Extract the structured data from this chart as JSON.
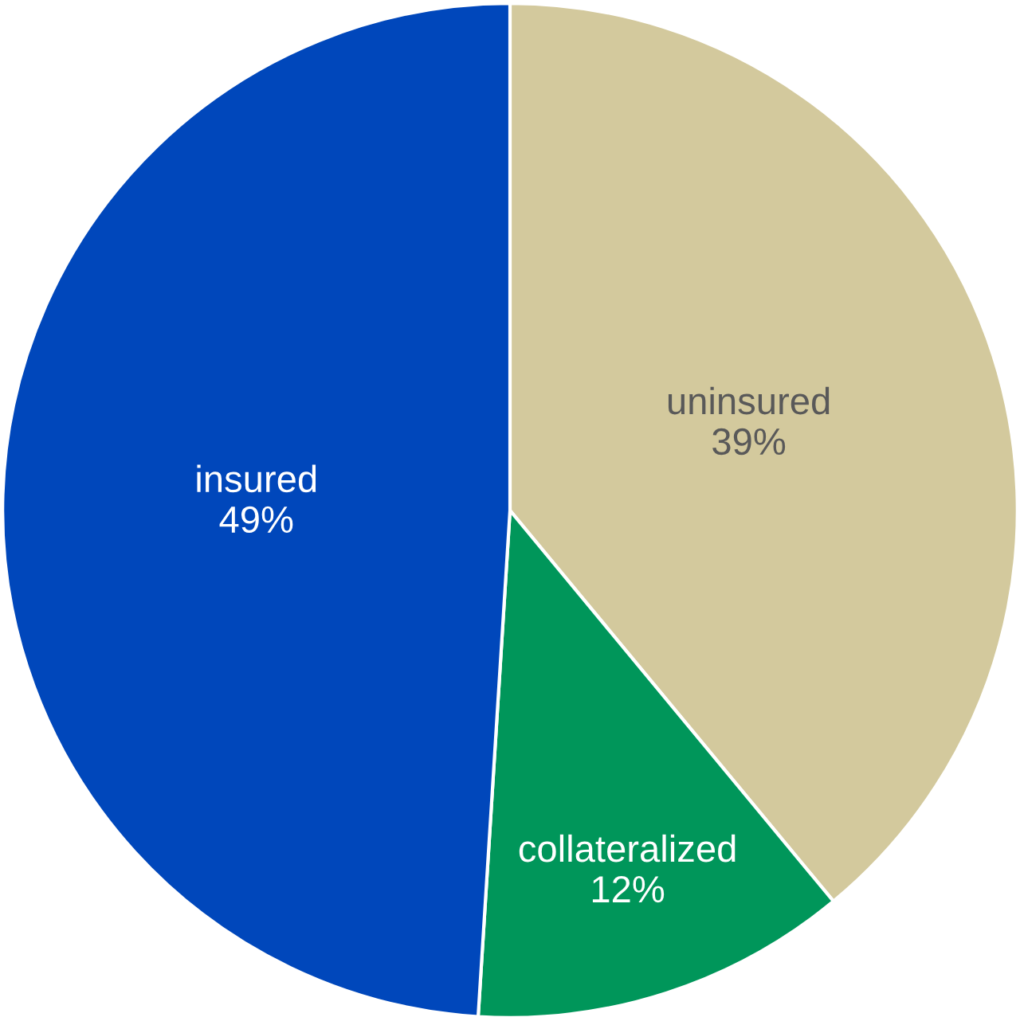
{
  "chart_data": {
    "type": "pie",
    "categories": [
      "uninsured",
      "collateralized",
      "insured"
    ],
    "values": [
      39,
      12,
      49
    ],
    "colors": [
      "#d3c99d",
      "#00965a",
      "#0047bb"
    ],
    "value_labels": [
      "39%",
      "12%",
      "49%"
    ]
  }
}
